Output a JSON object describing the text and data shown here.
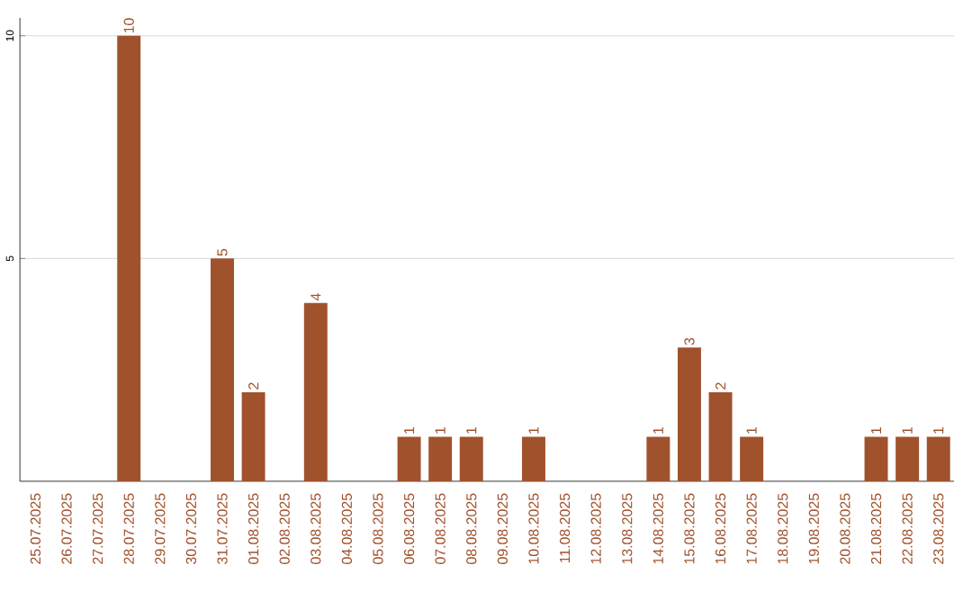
{
  "chart_data": {
    "type": "bar",
    "categories": [
      "25.07.2025",
      "26.07.2025",
      "27.07.2025",
      "28.07.2025",
      "29.07.2025",
      "30.07.2025",
      "31.07.2025",
      "01.08.2025",
      "02.08.2025",
      "03.08.2025",
      "04.08.2025",
      "05.08.2025",
      "06.08.2025",
      "07.08.2025",
      "08.08.2025",
      "09.08.2025",
      "10.08.2025",
      "11.08.2025",
      "12.08.2025",
      "13.08.2025",
      "14.08.2025",
      "15.08.2025",
      "16.08.2025",
      "17.08.2025",
      "18.08.2025",
      "19.08.2025",
      "20.08.2025",
      "21.08.2025",
      "22.08.2025",
      "23.08.2025"
    ],
    "values": [
      0,
      0,
      0,
      10,
      0,
      0,
      5,
      2,
      0,
      4,
      0,
      0,
      1,
      1,
      1,
      0,
      1,
      0,
      0,
      0,
      1,
      3,
      2,
      1,
      0,
      0,
      0,
      1,
      1,
      1
    ],
    "value_labels": [
      null,
      null,
      null,
      "10",
      null,
      null,
      "5",
      "2",
      null,
      "4",
      null,
      null,
      "1",
      "1",
      "1",
      null,
      "1",
      null,
      null,
      null,
      "1",
      "3",
      "2",
      "1",
      null,
      null,
      null,
      "1",
      "1",
      "1"
    ],
    "color": "#a0522d",
    "ylim": [
      0,
      10.4
    ],
    "yticks": [
      5,
      10
    ],
    "grid": "y"
  }
}
